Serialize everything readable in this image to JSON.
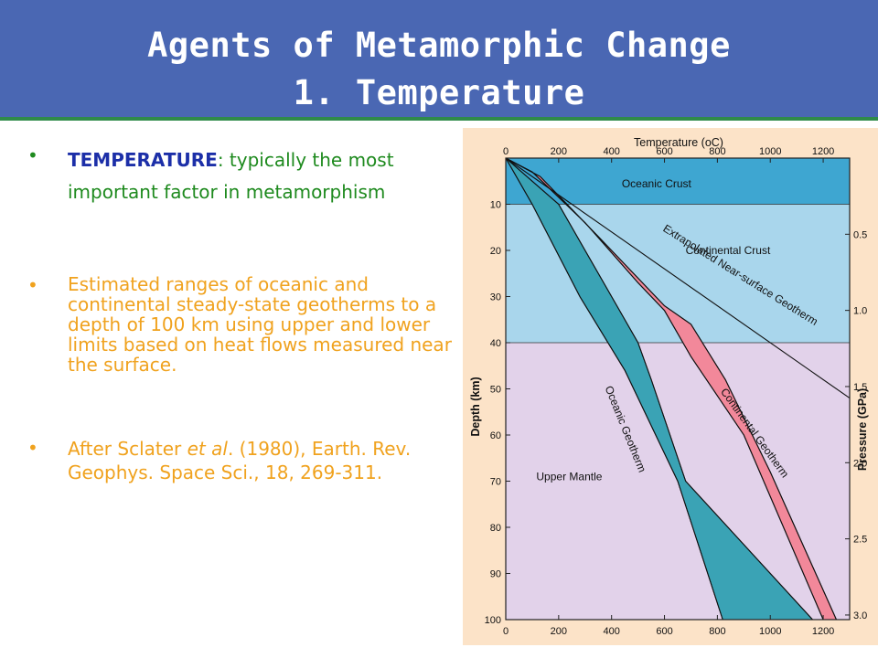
{
  "slide": {
    "title_line1": "Agents of Metamorphic Change",
    "title_line2": "1. Temperature"
  },
  "bullets": {
    "b1_keyword": "TEMPERATURE",
    "b1_rest": ": typically the most important factor in metamorphism",
    "b2": "Estimated ranges of oceanic and continental steady-state geotherms to a depth of 100 km using upper and lower limits based on heat flows measured near the surface.",
    "b3_pre": "After Sclater ",
    "b3_italic": "et al",
    "b3_post": ". (1980), Earth. Rev. Geophys. Space Sci., 18, 269-311."
  },
  "chart_data": {
    "type": "area",
    "title": "Temperature (oC)",
    "xlabel": "Temperature (oC)",
    "ylabel": "Depth (km)",
    "y2label": "Pressure (GPa)",
    "xlim": [
      0,
      1300
    ],
    "ylim": [
      0,
      100
    ],
    "x_ticks": [
      "0",
      "200",
      "400",
      "600",
      "800",
      "1000",
      "1200"
    ],
    "x_tick_values": [
      0,
      200,
      400,
      600,
      800,
      1000,
      1200
    ],
    "y_ticks": [
      "10",
      "20",
      "30",
      "40",
      "50",
      "60",
      "70",
      "80",
      "90",
      "100"
    ],
    "y_tick_values": [
      10,
      20,
      30,
      40,
      50,
      60,
      70,
      80,
      90,
      100
    ],
    "y2_ticks": [
      "0.5",
      "1.0",
      "1.5",
      "2.0",
      "2.5",
      "3.0"
    ],
    "y2_tick_depths": [
      16.5,
      33,
      49.5,
      66,
      82.5,
      99
    ],
    "layers": [
      {
        "name": "Oceanic Crust",
        "depth": [
          0,
          10
        ],
        "color": "#3ea6d1",
        "label_at": [
          570,
          5.5
        ]
      },
      {
        "name": "Continental Crust",
        "depth": [
          10,
          40
        ],
        "color": "#a9d6ec",
        "label_at": [
          840,
          20
        ]
      },
      {
        "name": "Upper Mantle",
        "depth": [
          40,
          100
        ],
        "color": "#e2d2ea",
        "label_at": [
          240,
          69
        ]
      }
    ],
    "series": [
      {
        "name": "Continental Geotherm",
        "color": "#f2889a",
        "upper_T": [
          [
            0,
            0
          ],
          [
            100,
            3
          ],
          [
            300,
            14
          ],
          [
            500,
            27
          ],
          [
            600,
            33
          ],
          [
            700,
            43
          ],
          [
            900,
            60
          ],
          [
            1200,
            100
          ]
        ],
        "lower_T": [
          [
            0,
            0
          ],
          [
            130,
            4
          ],
          [
            350,
            17
          ],
          [
            600,
            32
          ],
          [
            700,
            36
          ],
          [
            830,
            48
          ],
          [
            1000,
            68
          ],
          [
            1250,
            100
          ]
        ],
        "label_at": [
          930,
          60
        ],
        "label_angle": 54
      },
      {
        "name": "Oceanic Geotherm",
        "color": "#3aa3b5",
        "upper_T": [
          [
            0,
            0
          ],
          [
            100,
            10
          ],
          [
            280,
            30
          ],
          [
            450,
            46
          ],
          [
            650,
            70
          ],
          [
            820,
            100
          ]
        ],
        "lower_T": [
          [
            0,
            0
          ],
          [
            200,
            10
          ],
          [
            400,
            30
          ],
          [
            500,
            40
          ],
          [
            550,
            48
          ],
          [
            680,
            70
          ],
          [
            1160,
            100
          ]
        ],
        "label_at": [
          440,
          59
        ],
        "label_angle": 68
      }
    ],
    "overlap_color": "#6d8c95",
    "reference_lines": [
      {
        "name": "Extrapolated Near-surface Geotherm",
        "points": [
          [
            0,
            0
          ],
          [
            1300,
            52
          ]
        ],
        "label_at": [
          880,
          26
        ],
        "label_angle": 32
      }
    ],
    "background": "#fce3c8",
    "grid": false
  }
}
